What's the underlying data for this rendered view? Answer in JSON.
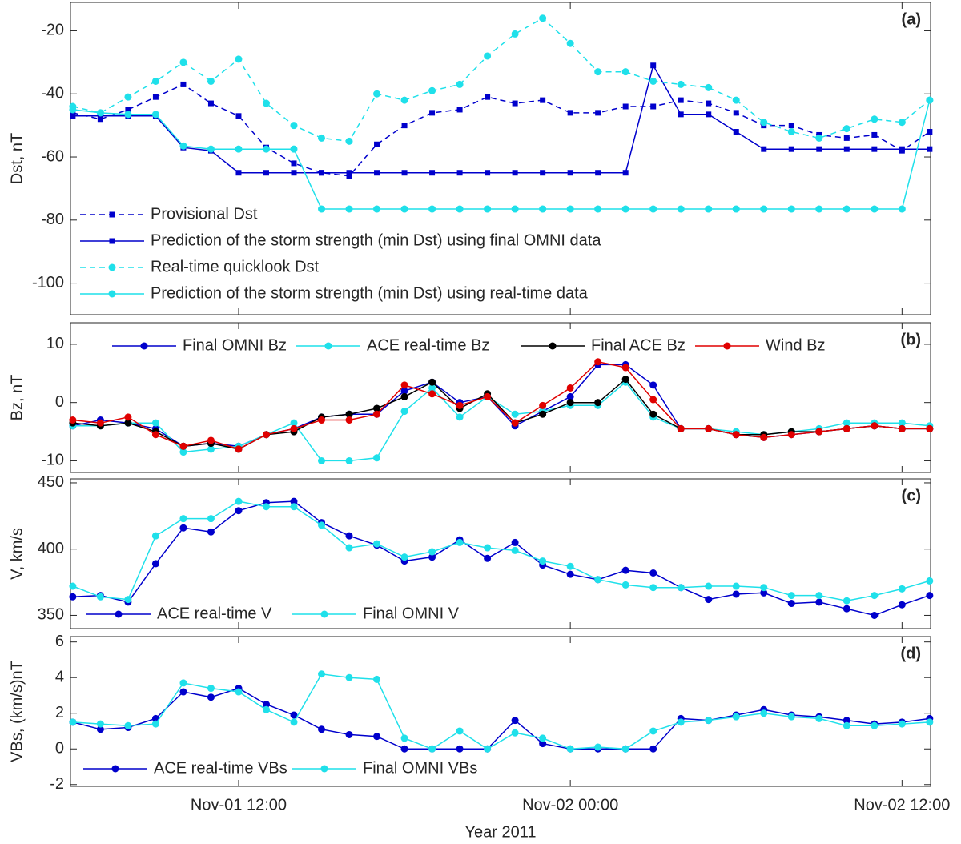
{
  "chart_data": [
    {
      "type": "line",
      "panel_label": "(a)",
      "ylabel": "Dst, nT",
      "ylim": [
        -110,
        -11
      ],
      "yticks": [
        -100,
        -80,
        -60,
        -40,
        -20
      ],
      "xlim": [
        "2011-11-01T05:55",
        "2011-11-02T13:02"
      ],
      "x": [
        "2011-11-01T06:00",
        "2011-11-01T07:00",
        "2011-11-01T08:00",
        "2011-11-01T09:00",
        "2011-11-01T10:00",
        "2011-11-01T11:00",
        "2011-11-01T12:00",
        "2011-11-01T13:00",
        "2011-11-01T14:00",
        "2011-11-01T15:00",
        "2011-11-01T16:00",
        "2011-11-01T17:00",
        "2011-11-01T18:00",
        "2011-11-01T19:00",
        "2011-11-01T20:00",
        "2011-11-01T21:00",
        "2011-11-01T22:00",
        "2011-11-01T23:00",
        "2011-11-02T00:00",
        "2011-11-02T01:00",
        "2011-11-02T02:00",
        "2011-11-02T03:00",
        "2011-11-02T04:00",
        "2011-11-02T05:00",
        "2011-11-02T06:00",
        "2011-11-02T07:00",
        "2011-11-02T08:00",
        "2011-11-02T09:00",
        "2011-11-02T10:00",
        "2011-11-02T11:00",
        "2011-11-02T12:00",
        "2011-11-02T13:00"
      ],
      "legend": "lower left",
      "series": [
        {
          "name": "Provisional Dst",
          "color": "#0000cc",
          "dashed": true,
          "marker": "square",
          "values": [
            -46,
            -48,
            -45,
            -41,
            -37,
            -43,
            -47,
            -57,
            -62,
            -65,
            -66,
            -56,
            -50,
            -46,
            -45,
            -41,
            -43,
            -42,
            -46,
            -46,
            -44,
            -44,
            -42,
            -43,
            -46,
            -50,
            -50,
            -53,
            -54,
            -53,
            -58,
            -52
          ]
        },
        {
          "name": "Prediction of the storm strength (min Dst) using final OMNI data",
          "color": "#0000cc",
          "dashed": false,
          "marker": "square",
          "values": [
            -47,
            -47,
            -47,
            -47,
            -57,
            -58,
            -65,
            -65,
            -65,
            -65,
            -65,
            -65,
            -65,
            -65,
            -65,
            -65,
            -65,
            -65,
            -65,
            -65,
            -65,
            -31,
            -46.5,
            -46.5,
            -52,
            -57.5,
            -57.5,
            -57.5,
            -57.5,
            -57.5,
            -57.5,
            -57.5
          ]
        },
        {
          "name": "Real-time quicklook Dst",
          "color": "#1fe0ea",
          "dashed": true,
          "marker": "circle",
          "values": [
            -44,
            -46,
            -41,
            -36,
            -30,
            -36,
            -29,
            -43,
            -50,
            -54,
            -55,
            -40,
            -42,
            -39,
            -37,
            -28,
            -21,
            -16,
            -24,
            -33,
            -33,
            -36,
            -37,
            -38,
            -42,
            -49,
            -52,
            -54,
            -51,
            -48,
            -49,
            -42
          ]
        },
        {
          "name": "Prediction of the storm strength (min Dst) using real-time data",
          "color": "#1fe0ea",
          "dashed": false,
          "marker": "circle",
          "values": [
            -45,
            -46,
            -46.5,
            -46.5,
            -56.5,
            -57.5,
            -57.5,
            -57.5,
            -57.5,
            -76.5,
            -76.5,
            -76.5,
            -76.5,
            -76.5,
            -76.5,
            -76.5,
            -76.5,
            -76.5,
            -76.5,
            -76.5,
            -76.5,
            -76.5,
            -76.5,
            -76.5,
            -76.5,
            -76.5,
            -76.5,
            -76.5,
            -76.5,
            -76.5,
            -76.5,
            -42
          ]
        }
      ]
    },
    {
      "type": "line",
      "panel_label": "(b)",
      "ylabel": "Bz, nT",
      "ylim": [
        -12,
        13.7
      ],
      "yticks": [
        -10,
        0,
        10
      ],
      "xlim": [
        "2011-11-01T05:55",
        "2011-11-02T13:02"
      ],
      "x": [
        "2011-11-01T06:00",
        "2011-11-01T07:00",
        "2011-11-01T08:00",
        "2011-11-01T09:00",
        "2011-11-01T10:00",
        "2011-11-01T11:00",
        "2011-11-01T12:00",
        "2011-11-01T13:00",
        "2011-11-01T14:00",
        "2011-11-01T15:00",
        "2011-11-01T16:00",
        "2011-11-01T17:00",
        "2011-11-01T18:00",
        "2011-11-01T19:00",
        "2011-11-01T20:00",
        "2011-11-01T21:00",
        "2011-11-01T22:00",
        "2011-11-01T23:00",
        "2011-11-02T00:00",
        "2011-11-02T01:00",
        "2011-11-02T02:00",
        "2011-11-02T03:00",
        "2011-11-02T04:00",
        "2011-11-02T05:00",
        "2011-11-02T06:00",
        "2011-11-02T07:00",
        "2011-11-02T08:00",
        "2011-11-02T09:00",
        "2011-11-02T10:00",
        "2011-11-02T11:00",
        "2011-11-02T12:00",
        "2011-11-02T13:00"
      ],
      "legend": "upper",
      "series": [
        {
          "name": "Final OMNI Bz",
          "color": "#0000cc",
          "dashed": false,
          "marker": "circle",
          "values": [
            -4,
            -3,
            -3.5,
            -4.5,
            -7.5,
            -7,
            -7.5,
            -5.5,
            -4.5,
            -2.5,
            -2,
            -2,
            2,
            3.5,
            0,
            1,
            -4,
            -1.5,
            1,
            6.5,
            6.5,
            3,
            -4.5,
            -4.5,
            -5.5,
            -6,
            -5.5,
            -5,
            -4.5,
            -4,
            -4.5,
            -4.5
          ]
        },
        {
          "name": "ACE real-time Bz",
          "color": "#1fe0ea",
          "dashed": false,
          "marker": "circle",
          "values": [
            -4,
            -4,
            -3.5,
            -3.5,
            -8.5,
            -8,
            -7.5,
            -5.5,
            -3.5,
            -10,
            -10,
            -9.5,
            -1.5,
            2.5,
            -2.5,
            1,
            -2,
            -1.5,
            -0.5,
            -0.5,
            3.5,
            -2.5,
            -4.5,
            -4.5,
            -5,
            -5.5,
            -5,
            -4.5,
            -3.5,
            -3.5,
            -3.5,
            -4
          ]
        },
        {
          "name": "Final ACE Bz",
          "color": "#000000",
          "dashed": false,
          "marker": "circle",
          "values": [
            -3.5,
            -4,
            -3.5,
            -5,
            -7.5,
            -7,
            -8,
            -5.5,
            -5,
            -2.5,
            -2,
            -1,
            1,
            3.5,
            -1,
            1.5,
            -3.5,
            -2,
            0,
            0,
            4,
            -2,
            -4.5,
            -4.5,
            -5.5,
            -5.5,
            -5,
            -5,
            -4.5,
            -4,
            -4.5,
            -4.5
          ]
        },
        {
          "name": "Wind Bz",
          "color": "#e00000",
          "dashed": false,
          "marker": "circle",
          "values": [
            -3,
            -3.5,
            -2.5,
            -5.5,
            -7.5,
            -6.5,
            -8,
            -5.5,
            -4.5,
            -3,
            -3,
            -2,
            3,
            1.5,
            -0.5,
            1,
            -3.5,
            -0.5,
            2.5,
            7,
            6,
            0.5,
            -4.5,
            -4.5,
            -5.5,
            -6,
            -5.5,
            -5,
            -4.5,
            -4,
            -4.5,
            -4.5
          ]
        }
      ]
    },
    {
      "type": "line",
      "panel_label": "(c)",
      "ylabel": "V, km/s",
      "ylim": [
        340,
        453
      ],
      "yticks": [
        350,
        400,
        450
      ],
      "xlim": [
        "2011-11-01T05:55",
        "2011-11-02T13:02"
      ],
      "x": [
        "2011-11-01T06:00",
        "2011-11-01T07:00",
        "2011-11-01T08:00",
        "2011-11-01T09:00",
        "2011-11-01T10:00",
        "2011-11-01T11:00",
        "2011-11-01T12:00",
        "2011-11-01T13:00",
        "2011-11-01T14:00",
        "2011-11-01T15:00",
        "2011-11-01T16:00",
        "2011-11-01T17:00",
        "2011-11-01T18:00",
        "2011-11-01T19:00",
        "2011-11-01T20:00",
        "2011-11-01T21:00",
        "2011-11-01T22:00",
        "2011-11-01T23:00",
        "2011-11-02T00:00",
        "2011-11-02T01:00",
        "2011-11-02T02:00",
        "2011-11-02T03:00",
        "2011-11-02T04:00",
        "2011-11-02T05:00",
        "2011-11-02T06:00",
        "2011-11-02T07:00",
        "2011-11-02T08:00",
        "2011-11-02T09:00",
        "2011-11-02T10:00",
        "2011-11-02T11:00",
        "2011-11-02T12:00",
        "2011-11-02T13:00"
      ],
      "legend": "lower left",
      "series": [
        {
          "name": "ACE real-time V",
          "color": "#0000cc",
          "dashed": false,
          "marker": "circle",
          "values": [
            364,
            365,
            360,
            389,
            416,
            413,
            429,
            435,
            436,
            420,
            410,
            403,
            391,
            394,
            407,
            393,
            405,
            388,
            381,
            377,
            384,
            382,
            371,
            362,
            366,
            367,
            359,
            360,
            355,
            350,
            358,
            365
          ]
        },
        {
          "name": "Final OMNI V",
          "color": "#1fe0ea",
          "dashed": false,
          "marker": "circle",
          "values": [
            372,
            364,
            362,
            410,
            423,
            423,
            436,
            432,
            432,
            418,
            401,
            404,
            394,
            398,
            405,
            401,
            399,
            391,
            387,
            377,
            373,
            371,
            371,
            372,
            372,
            371,
            365,
            365,
            361,
            365,
            370,
            376
          ]
        }
      ]
    },
    {
      "type": "line",
      "panel_label": "(d)",
      "ylabel": "VBs, (km/s)nT",
      "ylim": [
        -2.1,
        6.3
      ],
      "yticks": [
        -2,
        0,
        2,
        4,
        6
      ],
      "xlim": [
        "2011-11-01T05:55",
        "2011-11-02T13:02"
      ],
      "xlabel": "Year 2011",
      "xticks": [
        {
          "value": "2011-11-01T12:00",
          "label": "Nov-01 12:00"
        },
        {
          "value": "2011-11-02T00:00",
          "label": "Nov-02 00:00"
        },
        {
          "value": "2011-11-02T12:00",
          "label": "Nov-02 12:00"
        }
      ],
      "x": [
        "2011-11-01T06:00",
        "2011-11-01T07:00",
        "2011-11-01T08:00",
        "2011-11-01T09:00",
        "2011-11-01T10:00",
        "2011-11-01T11:00",
        "2011-11-01T12:00",
        "2011-11-01T13:00",
        "2011-11-01T14:00",
        "2011-11-01T15:00",
        "2011-11-01T16:00",
        "2011-11-01T17:00",
        "2011-11-01T18:00",
        "2011-11-01T19:00",
        "2011-11-01T20:00",
        "2011-11-01T21:00",
        "2011-11-01T22:00",
        "2011-11-01T23:00",
        "2011-11-02T00:00",
        "2011-11-02T01:00",
        "2011-11-02T02:00",
        "2011-11-02T03:00",
        "2011-11-02T04:00",
        "2011-11-02T05:00",
        "2011-11-02T06:00",
        "2011-11-02T07:00",
        "2011-11-02T08:00",
        "2011-11-02T09:00",
        "2011-11-02T10:00",
        "2011-11-02T11:00",
        "2011-11-02T12:00",
        "2011-11-02T13:00"
      ],
      "legend": "lower left",
      "series": [
        {
          "name": "ACE real-time VBs",
          "color": "#0000cc",
          "dashed": false,
          "marker": "circle",
          "values": [
            1.5,
            1.1,
            1.2,
            1.7,
            3.2,
            2.9,
            3.4,
            2.5,
            1.9,
            1.1,
            0.8,
            0.7,
            0,
            0,
            0,
            0,
            1.6,
            0.3,
            0,
            0,
            0,
            0,
            1.7,
            1.6,
            1.9,
            2.2,
            1.9,
            1.8,
            1.6,
            1.4,
            1.5,
            1.7
          ]
        },
        {
          "name": "Final OMNI VBs",
          "color": "#1fe0ea",
          "dashed": false,
          "marker": "circle",
          "values": [
            1.5,
            1.4,
            1.3,
            1.4,
            3.7,
            3.4,
            3.2,
            2.2,
            1.5,
            4.2,
            4,
            3.9,
            0.6,
            0,
            1,
            0,
            0.9,
            0.6,
            0,
            0.1,
            0,
            1,
            1.5,
            1.6,
            1.8,
            2,
            1.8,
            1.7,
            1.3,
            1.3,
            1.4,
            1.5
          ]
        }
      ]
    }
  ]
}
